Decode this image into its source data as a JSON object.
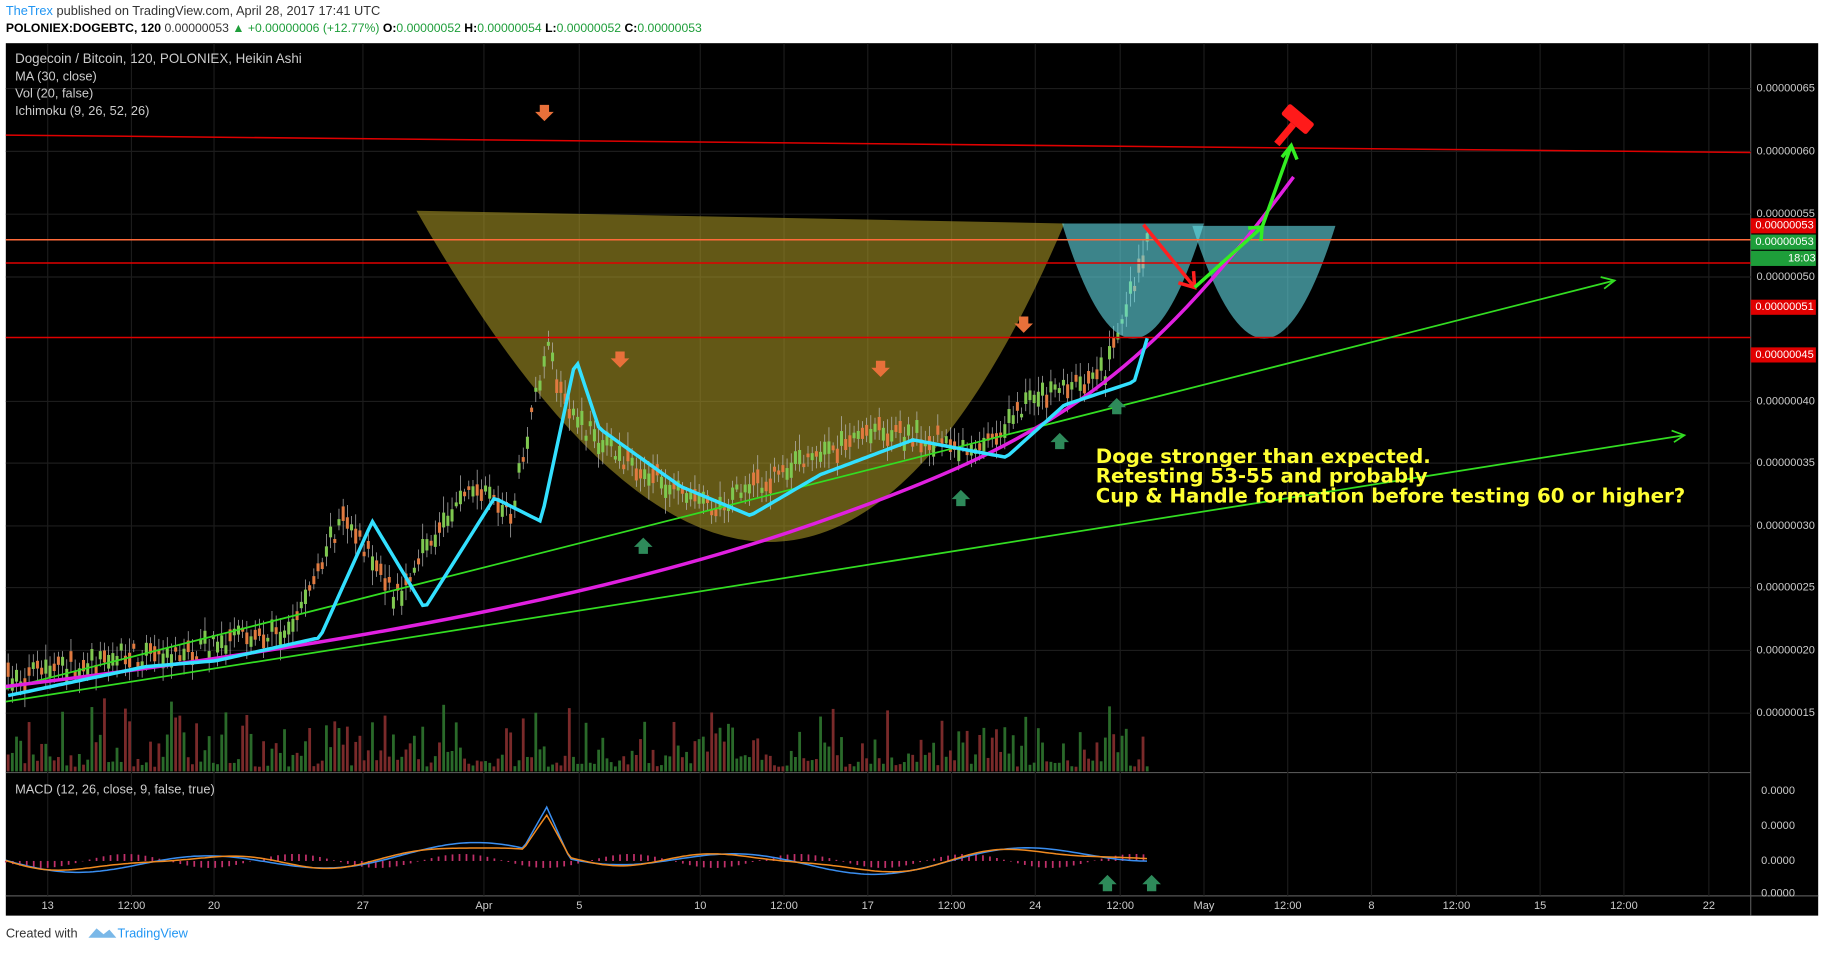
{
  "header": {
    "author": "TheTrex",
    "published": "published on TradingView.com, April 28, 2017 17:41 UTC",
    "symbol": "POLONIEX:DOGEBTC, 120",
    "last": "0.00000053",
    "change": "▲ +0.00000006 (+12.77%)",
    "open_label": "O:",
    "open": "0.00000052",
    "high_label": "H:",
    "high": "0.00000054",
    "low_label": "L:",
    "low": "0.00000052",
    "close_label": "C:",
    "close": "0.00000053"
  },
  "legend": [
    "Dogecoin / Bitcoin, 120, POLONIEX, Heikin Ashi",
    "MA (30, close)",
    "Vol (20, false)",
    "Ichimoku (9, 26, 52, 26)"
  ],
  "macd_legend": "MACD (12, 26, close, 9, false, true)",
  "price_axis": [
    "0.00000065",
    "0.00000060",
    "0.00000055",
    "0.00000050",
    "0.00000040",
    "0.00000035",
    "0.00000030",
    "0.00000025",
    "0.00000020",
    "0.00000015"
  ],
  "price_tags": [
    {
      "text": "0.00000053",
      "color": "#e00000"
    },
    {
      "text": "0.00000053",
      "color": "#1e9e3a"
    },
    {
      "text": "18:03",
      "color": "#1e9e3a"
    },
    {
      "text": "0.00000051",
      "color": "#e00000"
    },
    {
      "text": "0.00000045",
      "color": "#e00000"
    }
  ],
  "macd_axis": [
    "0.0000",
    "0.0000",
    "0.0000",
    "0.0000"
  ],
  "time_axis": [
    "13",
    "12:00",
    "20",
    "27",
    "Apr",
    "5",
    "10",
    "12:00",
    "17",
    "12:00",
    "24",
    "12:00",
    "May",
    "12:00",
    "8",
    "12:00",
    "15",
    "12:00",
    "22"
  ],
  "annotation": [
    "Doge stronger than expected.",
    "Retesting 53-55 and probably",
    "Cup & Handle formation before testing 60 or higher?"
  ],
  "footer": {
    "created": "Created with",
    "brand": "TradingView"
  }
}
